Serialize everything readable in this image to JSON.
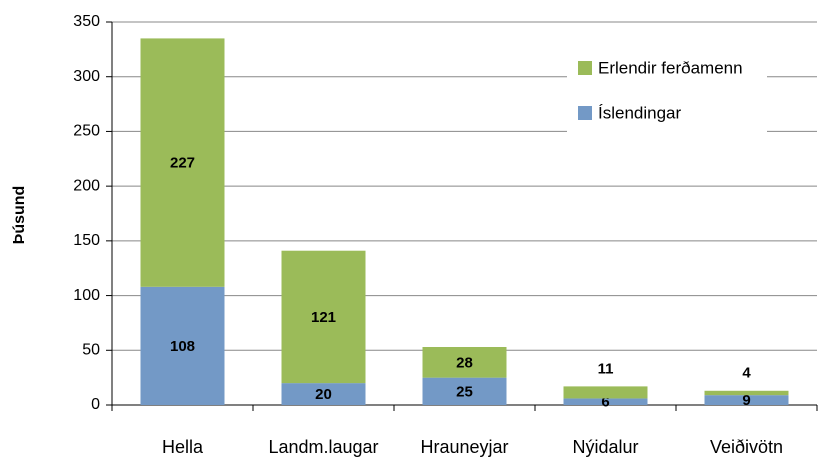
{
  "chart_data": {
    "type": "bar",
    "stacked": true,
    "y_label": "Þúsund",
    "categories": [
      "Hella",
      "Landm.laugar",
      "Hrauneyjar",
      "Nýidalur",
      "Veiðivötn"
    ],
    "series": [
      {
        "name": "Íslendingar",
        "color": "#7399c6",
        "values": [
          108,
          20,
          25,
          6,
          9
        ]
      },
      {
        "name": "Erlendir ferðamenn",
        "color": "#9bbb59",
        "values": [
          227,
          121,
          28,
          11,
          4
        ]
      }
    ],
    "ylim": [
      0,
      350
    ],
    "yticks": [
      0,
      50,
      100,
      150,
      200,
      250,
      300,
      350
    ],
    "grid": true,
    "legend": "upper right"
  }
}
